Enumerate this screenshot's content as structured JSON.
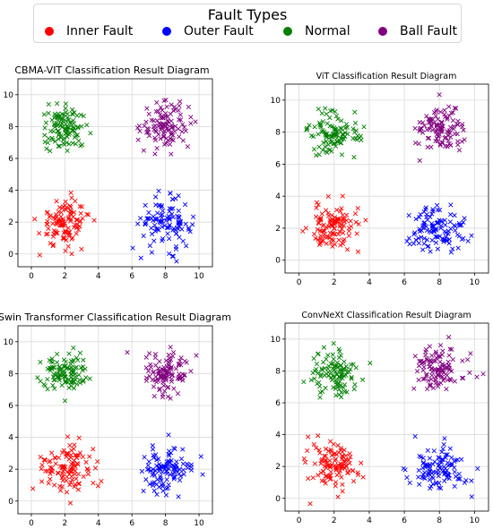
{
  "legend": {
    "title": "Fault Types",
    "items": [
      {
        "label": "Inner Fault",
        "color": "#ff0000"
      },
      {
        "label": "Outer Fault",
        "color": "#0000ff"
      },
      {
        "label": "Normal",
        "color": "#008000"
      },
      {
        "label": "Ball Fault",
        "color": "#800080"
      }
    ]
  },
  "chart_data": [
    {
      "type": "scatter",
      "title": "CBMA-VIT Classification Result Diagram",
      "xlabel": "",
      "ylabel": "",
      "xlim": [
        -0.8,
        10.8
      ],
      "ylim": [
        -0.8,
        11
      ],
      "xticks": [
        0,
        2,
        4,
        6,
        8,
        10
      ],
      "yticks": [
        0,
        2,
        4,
        6,
        8,
        10
      ],
      "grid": true,
      "marker": "x",
      "series": [
        {
          "name": "Inner Fault",
          "color": "#ff0000",
          "center": [
            2,
            2
          ],
          "spread": 0.75,
          "n": 110
        },
        {
          "name": "Outer Fault",
          "color": "#0000ff",
          "center": [
            8,
            1.9
          ],
          "spread": 0.75,
          "n": 110
        },
        {
          "name": "Normal",
          "color": "#008000",
          "center": [
            2,
            7.9
          ],
          "spread": 0.7,
          "n": 110
        },
        {
          "name": "Ball Fault",
          "color": "#800080",
          "center": [
            8,
            8.1
          ],
          "spread": 0.7,
          "n": 110
        }
      ]
    },
    {
      "type": "scatter",
      "title": "ViT Classification Result Diagram",
      "xlabel": "",
      "ylabel": "",
      "xlim": [
        -0.8,
        10.8
      ],
      "ylim": [
        -0.8,
        11
      ],
      "xticks": [
        0,
        2,
        4,
        6,
        8,
        10
      ],
      "yticks": [
        0,
        2,
        4,
        6,
        8,
        10
      ],
      "grid": true,
      "marker": "x",
      "series": [
        {
          "name": "Inner Fault",
          "color": "#ff0000",
          "center": [
            2,
            2
          ],
          "spread": 0.75,
          "n": 110
        },
        {
          "name": "Outer Fault",
          "color": "#0000ff",
          "center": [
            8,
            1.9
          ],
          "spread": 0.75,
          "n": 110
        },
        {
          "name": "Normal",
          "color": "#008000",
          "center": [
            2,
            7.9
          ],
          "spread": 0.7,
          "n": 110
        },
        {
          "name": "Ball Fault",
          "color": "#800080",
          "center": [
            8,
            8.1
          ],
          "spread": 0.7,
          "n": 110
        }
      ]
    },
    {
      "type": "scatter",
      "title": "Swin Transformer Classification Result Diagram",
      "xlabel": "",
      "ylabel": "",
      "xlim": [
        -0.8,
        10.8
      ],
      "ylim": [
        -0.8,
        11
      ],
      "xticks": [
        0,
        2,
        4,
        6,
        8,
        10
      ],
      "yticks": [
        0,
        2,
        4,
        6,
        8,
        10
      ],
      "grid": true,
      "marker": "x",
      "series": [
        {
          "name": "Inner Fault",
          "color": "#ff0000",
          "center": [
            2,
            2
          ],
          "spread": 0.75,
          "n": 110
        },
        {
          "name": "Outer Fault",
          "color": "#0000ff",
          "center": [
            8,
            1.9
          ],
          "spread": 0.75,
          "n": 110
        },
        {
          "name": "Normal",
          "color": "#008000",
          "center": [
            2,
            7.9
          ],
          "spread": 0.7,
          "n": 110
        },
        {
          "name": "Ball Fault",
          "color": "#800080",
          "center": [
            8,
            8.1
          ],
          "spread": 0.7,
          "n": 110
        }
      ]
    },
    {
      "type": "scatter",
      "title": "ConvNeXt Classification Result Diagram",
      "xlabel": "",
      "ylabel": "",
      "xlim": [
        -0.8,
        10.8
      ],
      "ylim": [
        -0.8,
        11
      ],
      "xticks": [
        0,
        2,
        4,
        6,
        8,
        10
      ],
      "yticks": [
        0,
        2,
        4,
        6,
        8,
        10
      ],
      "grid": true,
      "marker": "x",
      "series": [
        {
          "name": "Inner Fault",
          "color": "#ff0000",
          "center": [
            2,
            2
          ],
          "spread": 0.75,
          "n": 110
        },
        {
          "name": "Outer Fault",
          "color": "#0000ff",
          "center": [
            8,
            1.9
          ],
          "spread": 0.75,
          "n": 110
        },
        {
          "name": "Normal",
          "color": "#008000",
          "center": [
            2,
            7.9
          ],
          "spread": 0.7,
          "n": 110
        },
        {
          "name": "Ball Fault",
          "color": "#800080",
          "center": [
            8,
            8.1
          ],
          "spread": 0.7,
          "n": 110
        }
      ]
    }
  ]
}
